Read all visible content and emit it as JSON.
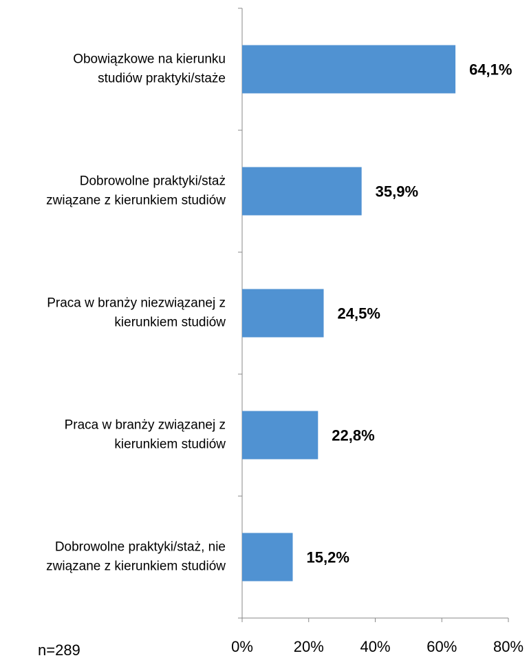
{
  "chart_data": {
    "type": "barh",
    "categories": [
      "Obowiązkowe na kierunku\nstudiów praktyki/staże",
      "Dobrowolne praktyki/staż\nzwiązane z kierunkiem studiów",
      "Praca w branży niezwiązanej z\nkierunkiem studiów",
      "Praca w branży związanej z\nkierunkiem studiów",
      "Dobrowolne praktyki/staż,  nie\nzwiązane z kierunkiem studiów"
    ],
    "values": [
      64.1,
      35.9,
      24.5,
      22.8,
      15.2
    ],
    "value_labels": [
      "64,1%",
      "35,9%",
      "24,5%",
      "22,8%",
      "15,2%"
    ],
    "color": "#5092d2",
    "xlim": [
      0,
      80
    ],
    "xticks": [
      {
        "value": 0,
        "label": "0%"
      },
      {
        "value": 20,
        "label": "20%"
      },
      {
        "value": 40,
        "label": "40%"
      },
      {
        "value": 60,
        "label": "60%"
      },
      {
        "value": 80,
        "label": "80%"
      }
    ],
    "annotation": "n=289"
  }
}
